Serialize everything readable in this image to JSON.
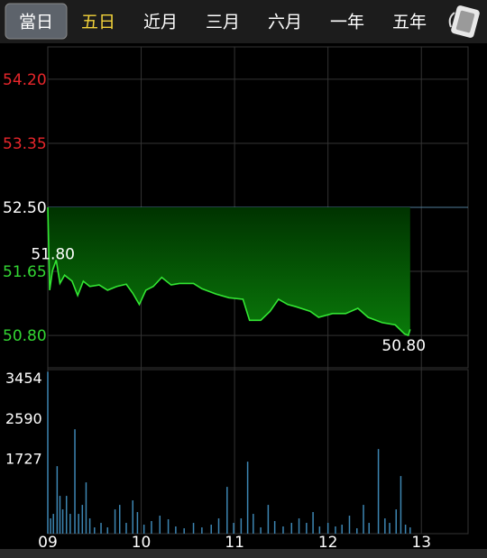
{
  "tabs": {
    "items": [
      "當日",
      "五日",
      "近月",
      "三月",
      "六月",
      "一年",
      "五年"
    ],
    "selected": 0,
    "highlight": 1,
    "highlight_color": "#f2d23a"
  },
  "chart_data": [
    {
      "type": "line",
      "x": [
        9.0,
        9.02,
        9.05,
        9.09,
        9.13,
        9.18,
        9.26,
        9.32,
        9.38,
        9.45,
        9.55,
        9.64,
        9.74,
        9.84,
        9.91,
        9.98,
        10.05,
        10.13,
        10.22,
        10.32,
        10.41,
        10.56,
        10.65,
        10.8,
        10.94,
        11.09,
        11.16,
        11.28,
        11.38,
        11.47,
        11.57,
        11.66,
        11.81,
        11.9,
        12.05,
        12.19,
        12.32,
        12.43,
        12.58,
        12.72,
        12.82,
        12.86,
        12.88
      ],
      "values": [
        52.5,
        51.4,
        51.66,
        51.8,
        51.49,
        51.6,
        51.52,
        51.33,
        51.52,
        51.45,
        51.47,
        51.4,
        51.45,
        51.48,
        51.36,
        51.21,
        51.4,
        51.45,
        51.57,
        51.47,
        51.49,
        51.49,
        51.42,
        51.35,
        51.3,
        51.28,
        51.0,
        51.0,
        51.12,
        51.28,
        51.21,
        51.18,
        51.12,
        51.04,
        51.09,
        51.09,
        51.16,
        51.04,
        50.97,
        50.94,
        50.82,
        50.8,
        50.88
      ],
      "color": "#33e633",
      "xlim": [
        9,
        13.5
      ],
      "ylim": [
        50.37,
        54.63
      ],
      "yticks": [
        {
          "value": 54.2,
          "label": "54.20"
        },
        {
          "value": 53.35,
          "label": "53.35"
        },
        {
          "value": 52.5,
          "label": "52.50"
        },
        {
          "value": 51.65,
          "label": "51.65"
        },
        {
          "value": 50.8,
          "label": "50.80"
        }
      ],
      "reference": 52.5,
      "up_color": "#e8262b",
      "down_color": "#33d633",
      "flat_color": "#ffffff",
      "annotations": [
        {
          "text": "51.80",
          "x": 9.09,
          "y": 51.8
        },
        {
          "text": "50.80",
          "x": 12.86,
          "y": 50.8
        }
      ],
      "grid": true
    },
    {
      "type": "bar",
      "x": [
        9.0,
        9.03,
        9.06,
        9.1,
        9.13,
        9.16,
        9.2,
        9.24,
        9.29,
        9.33,
        9.37,
        9.41,
        9.45,
        9.5,
        9.57,
        9.64,
        9.72,
        9.77,
        9.84,
        9.91,
        9.96,
        10.03,
        10.11,
        10.2,
        10.29,
        10.37,
        10.46,
        10.56,
        10.65,
        10.75,
        10.83,
        10.92,
        10.99,
        11.07,
        11.14,
        11.2,
        11.28,
        11.36,
        11.43,
        11.52,
        11.61,
        11.69,
        11.77,
        11.84,
        11.91,
        12.0,
        12.08,
        12.15,
        12.23,
        12.31,
        12.38,
        12.44,
        12.54,
        12.61,
        12.66,
        12.73,
        12.78,
        12.83,
        12.88
      ],
      "values": [
        3454,
        326,
        422,
        1440,
        806,
        518,
        806,
        422,
        2227,
        422,
        614,
        1094,
        326,
        134,
        230,
        134,
        518,
        614,
        230,
        710,
        461,
        192,
        269,
        384,
        307,
        154,
        115,
        230,
        134,
        192,
        326,
        998,
        230,
        326,
        1536,
        422,
        134,
        614,
        269,
        154,
        230,
        326,
        230,
        461,
        154,
        230,
        154,
        192,
        384,
        115,
        614,
        230,
        1805,
        326,
        230,
        518,
        1229,
        192,
        134
      ],
      "color": "#3d86b3",
      "xlim": [
        9,
        13.5
      ],
      "ylim": [
        0,
        3500
      ],
      "yticks": [
        3454,
        2590,
        1727
      ],
      "xticks": [
        {
          "value": 9,
          "label": "09"
        },
        10,
        11,
        12,
        13
      ],
      "grid": true
    }
  ]
}
